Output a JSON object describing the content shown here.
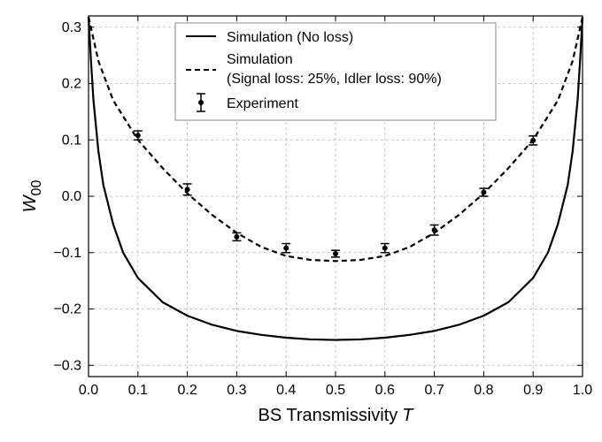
{
  "chart_data": {
    "type": "line",
    "title": "",
    "xlabel": "BS Transmissivity",
    "xlabel_var": "T",
    "ylabel": "W",
    "ylabel_sub": "00",
    "xlim": [
      0.0,
      1.0
    ],
    "ylim": [
      -0.32,
      0.32
    ],
    "xticks": [
      0.0,
      0.1,
      0.2,
      0.3,
      0.4,
      0.5,
      0.6,
      0.7,
      0.8,
      0.9,
      1.0
    ],
    "yticks": [
      -0.3,
      -0.2,
      -0.1,
      0.0,
      0.1,
      0.2,
      0.3
    ],
    "xtick_labels": [
      "0.0",
      "0.1",
      "0.2",
      "0.3",
      "0.4",
      "0.5",
      "0.6",
      "0.7",
      "0.8",
      "0.9",
      "1.0"
    ],
    "ytick_labels": [
      "−0.3",
      "−0.2",
      "−0.1",
      "0.0",
      "0.1",
      "0.2",
      "0.3"
    ],
    "grid": true,
    "legend_position": "top-center",
    "series": [
      {
        "name": "Simulation (No loss)",
        "style": "solid",
        "color": "#000000",
        "x": [
          0.0,
          0.005,
          0.01,
          0.02,
          0.03,
          0.05,
          0.07,
          0.1,
          0.15,
          0.2,
          0.25,
          0.3,
          0.35,
          0.4,
          0.45,
          0.5,
          0.55,
          0.6,
          0.65,
          0.7,
          0.75,
          0.8,
          0.85,
          0.9,
          0.93,
          0.95,
          0.97,
          0.98,
          0.99,
          0.995,
          1.0
        ],
        "y": [
          0.318,
          0.24,
          0.17,
          0.08,
          0.02,
          -0.05,
          -0.1,
          -0.145,
          -0.188,
          -0.212,
          -0.228,
          -0.239,
          -0.246,
          -0.251,
          -0.254,
          -0.255,
          -0.254,
          -0.251,
          -0.246,
          -0.239,
          -0.228,
          -0.212,
          -0.188,
          -0.145,
          -0.1,
          -0.05,
          0.02,
          0.08,
          0.17,
          0.24,
          0.318
        ]
      },
      {
        "name": "Simulation",
        "name_line2": "(Signal loss: 25%, Idler loss: 90%)",
        "style": "dashed",
        "color": "#000000",
        "x": [
          0.0,
          0.02,
          0.05,
          0.1,
          0.15,
          0.2,
          0.25,
          0.3,
          0.35,
          0.4,
          0.45,
          0.5,
          0.55,
          0.6,
          0.65,
          0.7,
          0.75,
          0.8,
          0.85,
          0.9,
          0.95,
          0.98,
          1.0
        ],
        "y": [
          0.318,
          0.24,
          0.17,
          0.1,
          0.05,
          0.005,
          -0.033,
          -0.065,
          -0.09,
          -0.106,
          -0.113,
          -0.115,
          -0.113,
          -0.106,
          -0.09,
          -0.065,
          -0.033,
          0.005,
          0.05,
          0.1,
          0.17,
          0.24,
          0.318
        ]
      },
      {
        "name": "Experiment",
        "style": "errorbar",
        "color": "#000000",
        "x": [
          0.1,
          0.2,
          0.3,
          0.4,
          0.5,
          0.6,
          0.7,
          0.8,
          0.9
        ],
        "y": [
          0.108,
          0.012,
          -0.072,
          -0.092,
          -0.102,
          -0.092,
          -0.06,
          0.007,
          0.099
        ],
        "yerr": [
          0.008,
          0.01,
          0.007,
          0.008,
          0.006,
          0.008,
          0.009,
          0.007,
          0.008
        ]
      }
    ]
  }
}
